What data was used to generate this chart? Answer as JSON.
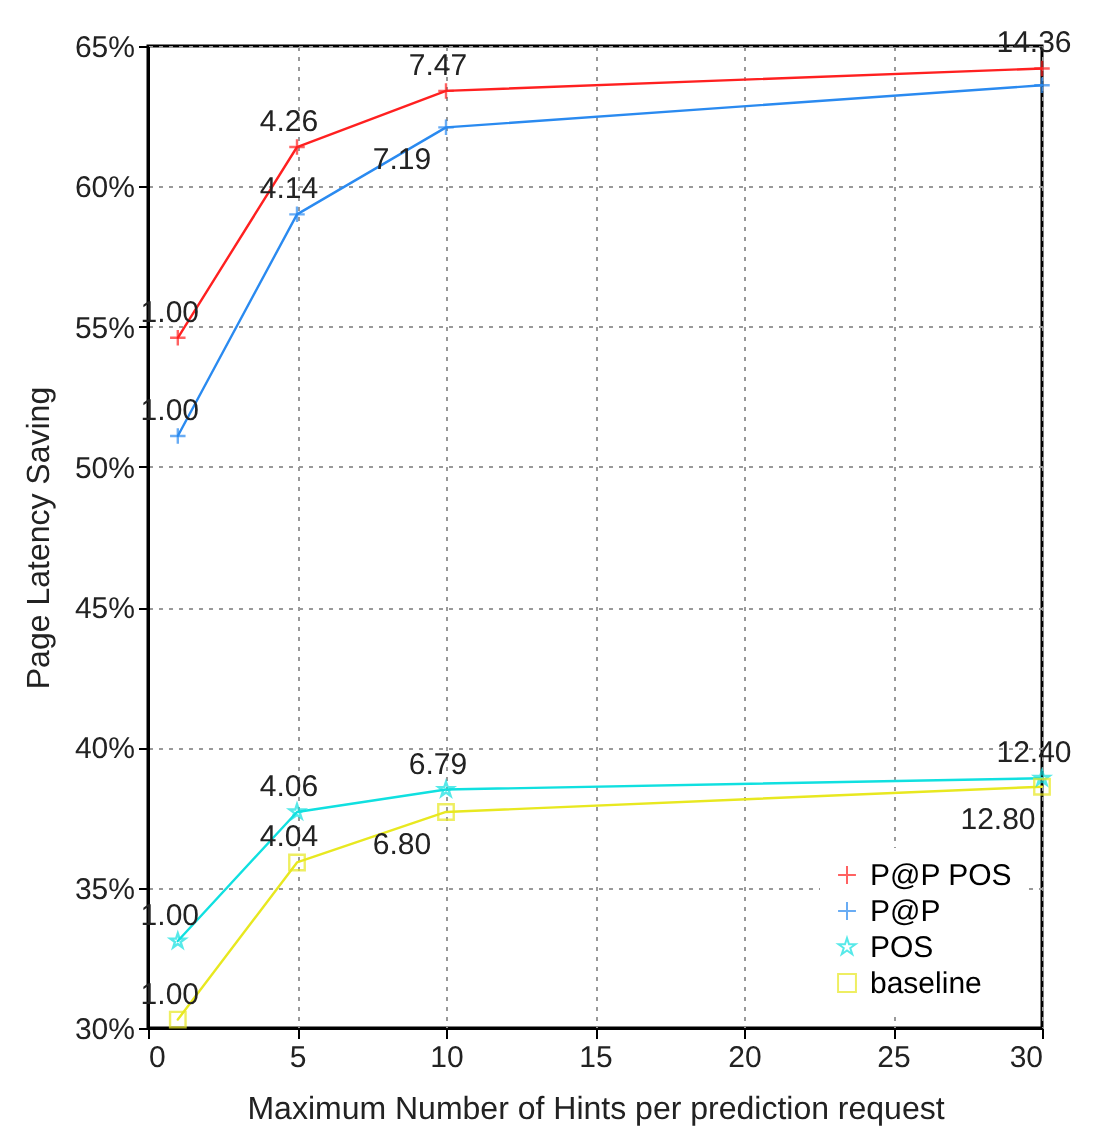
{
  "chart_data": {
    "type": "line",
    "xlabel": "Maximum Number of Hints per prediction request",
    "ylabel": "Page Latency Saving",
    "x": [
      1,
      5,
      10,
      30
    ],
    "series": [
      {
        "name": "P@P POS",
        "color": "#ff2020",
        "marker": "cross",
        "values": [
          54.6,
          61.4,
          63.4,
          64.2
        ]
      },
      {
        "name": "P@P",
        "color": "#2a8af0",
        "marker": "cross",
        "values": [
          51.1,
          59.0,
          62.1,
          63.6
        ]
      },
      {
        "name": "POS",
        "color": "#10e0e0",
        "marker": "star",
        "values": [
          33.1,
          37.7,
          38.5,
          38.9
        ]
      },
      {
        "name": "baseline",
        "color": "#e8e820",
        "marker": "square",
        "values": [
          30.3,
          35.9,
          37.7,
          38.6
        ]
      }
    ],
    "annotations": [
      {
        "text": "1.00",
        "x": 1,
        "y": 54.6
      },
      {
        "text": "4.26",
        "x": 5,
        "y": 61.4
      },
      {
        "text": "7.47",
        "x": 10,
        "y": 63.4
      },
      {
        "text": "14.36",
        "x": 30,
        "y": 64.2
      },
      {
        "text": "1.00",
        "x": 1,
        "y": 51.1
      },
      {
        "text": "4.14",
        "x": 5,
        "y": 59.0
      },
      {
        "text": "7.19",
        "x": 10,
        "y": 62.1
      },
      {
        "text": "1.00",
        "x": 1,
        "y": 33.1
      },
      {
        "text": "4.06",
        "x": 5,
        "y": 37.7
      },
      {
        "text": "6.79",
        "x": 10,
        "y": 38.5
      },
      {
        "text": "12.40",
        "x": 30,
        "y": 38.9
      },
      {
        "text": "1.00",
        "x": 1,
        "y": 30.3
      },
      {
        "text": "4.04",
        "x": 5,
        "y": 35.9
      },
      {
        "text": "6.80",
        "x": 10,
        "y": 37.7
      },
      {
        "text": "12.80",
        "x": 30,
        "y": 38.6
      }
    ],
    "xlim": [
      0,
      30
    ],
    "xticks": [
      0,
      5,
      10,
      15,
      20,
      25,
      30
    ],
    "ylim": [
      30,
      65
    ],
    "yticks": [
      {
        "value": 30,
        "label": "30%"
      },
      {
        "value": 35,
        "label": "35%"
      },
      {
        "value": 40,
        "label": "40%"
      },
      {
        "value": 45,
        "label": "45%"
      },
      {
        "value": 50,
        "label": "50%"
      },
      {
        "value": 55,
        "label": "55%"
      },
      {
        "value": 60,
        "label": "60%"
      },
      {
        "value": 65,
        "label": "65%"
      }
    ],
    "grid": true,
    "legend": "bottom right"
  }
}
